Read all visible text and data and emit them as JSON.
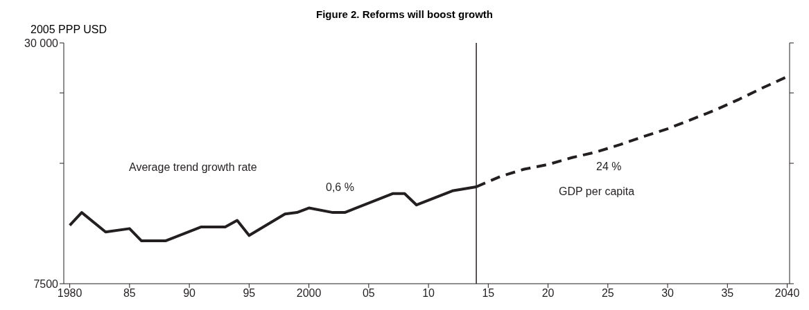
{
  "chart_data": {
    "type": "line",
    "title": "Figure 2. Reforms will boost growth",
    "ylabel": "2005 PPP USD",
    "log": "y",
    "marker": "none",
    "xlim": [
      1979.5,
      2040.2
    ],
    "xticks": [
      {
        "value": 1980,
        "label": "1980"
      },
      {
        "value": 1985,
        "label": "85"
      },
      {
        "value": 1990,
        "label": "90"
      },
      {
        "value": 1995,
        "label": "95"
      },
      {
        "value": 2000,
        "label": "2000"
      },
      {
        "value": 2005,
        "label": "05"
      },
      {
        "value": 2010,
        "label": "10"
      },
      {
        "value": 2015,
        "label": "15"
      },
      {
        "value": 2020,
        "label": "20"
      },
      {
        "value": 2025,
        "label": "25"
      },
      {
        "value": 2030,
        "label": "30"
      },
      {
        "value": 2035,
        "label": "35"
      },
      {
        "value": 2040,
        "label": "2040"
      }
    ],
    "ylim": [
      7500,
      30000
    ],
    "yticks": [
      {
        "value": 7500,
        "label": "7500"
      },
      {
        "value": 15000,
        "label": null
      },
      {
        "value": 22500,
        "label": null
      },
      {
        "value": 30000,
        "label": "30 000"
      }
    ],
    "series": [
      {
        "color": "#231f20",
        "line_style": "solid",
        "x": [
          1980,
          1981,
          1983,
          1985,
          1986,
          1988,
          1991,
          1993,
          1994,
          1995,
          1998,
          1999,
          2000,
          2002,
          2003,
          2007,
          2008,
          2009,
          2012,
          2014
        ],
        "values": [
          10500,
          11300,
          10100,
          10300,
          9600,
          9600,
          10400,
          10400,
          10800,
          9900,
          11200,
          11300,
          11600,
          11300,
          11300,
          12600,
          12600,
          11800,
          12800,
          13100
        ]
      },
      {
        "color": "#231f20",
        "line_style": "dashed",
        "x": [
          2014,
          2016,
          2018,
          2020,
          2022,
          2024,
          2026,
          2028,
          2030,
          2032,
          2034,
          2036,
          2038,
          2040
        ],
        "values": [
          13100,
          13900,
          14500,
          14900,
          15500,
          16000,
          16700,
          17500,
          18300,
          19300,
          20400,
          21700,
          23200,
          24700
        ]
      }
    ],
    "ref_lines": [
      {
        "axis": "x",
        "value": 2014,
        "color": "#231f20",
        "line_style": "solid"
      }
    ],
    "annotations": [
      "Average trend growth rate",
      "0,6 %",
      "24 %",
      "GDP per capita"
    ]
  }
}
